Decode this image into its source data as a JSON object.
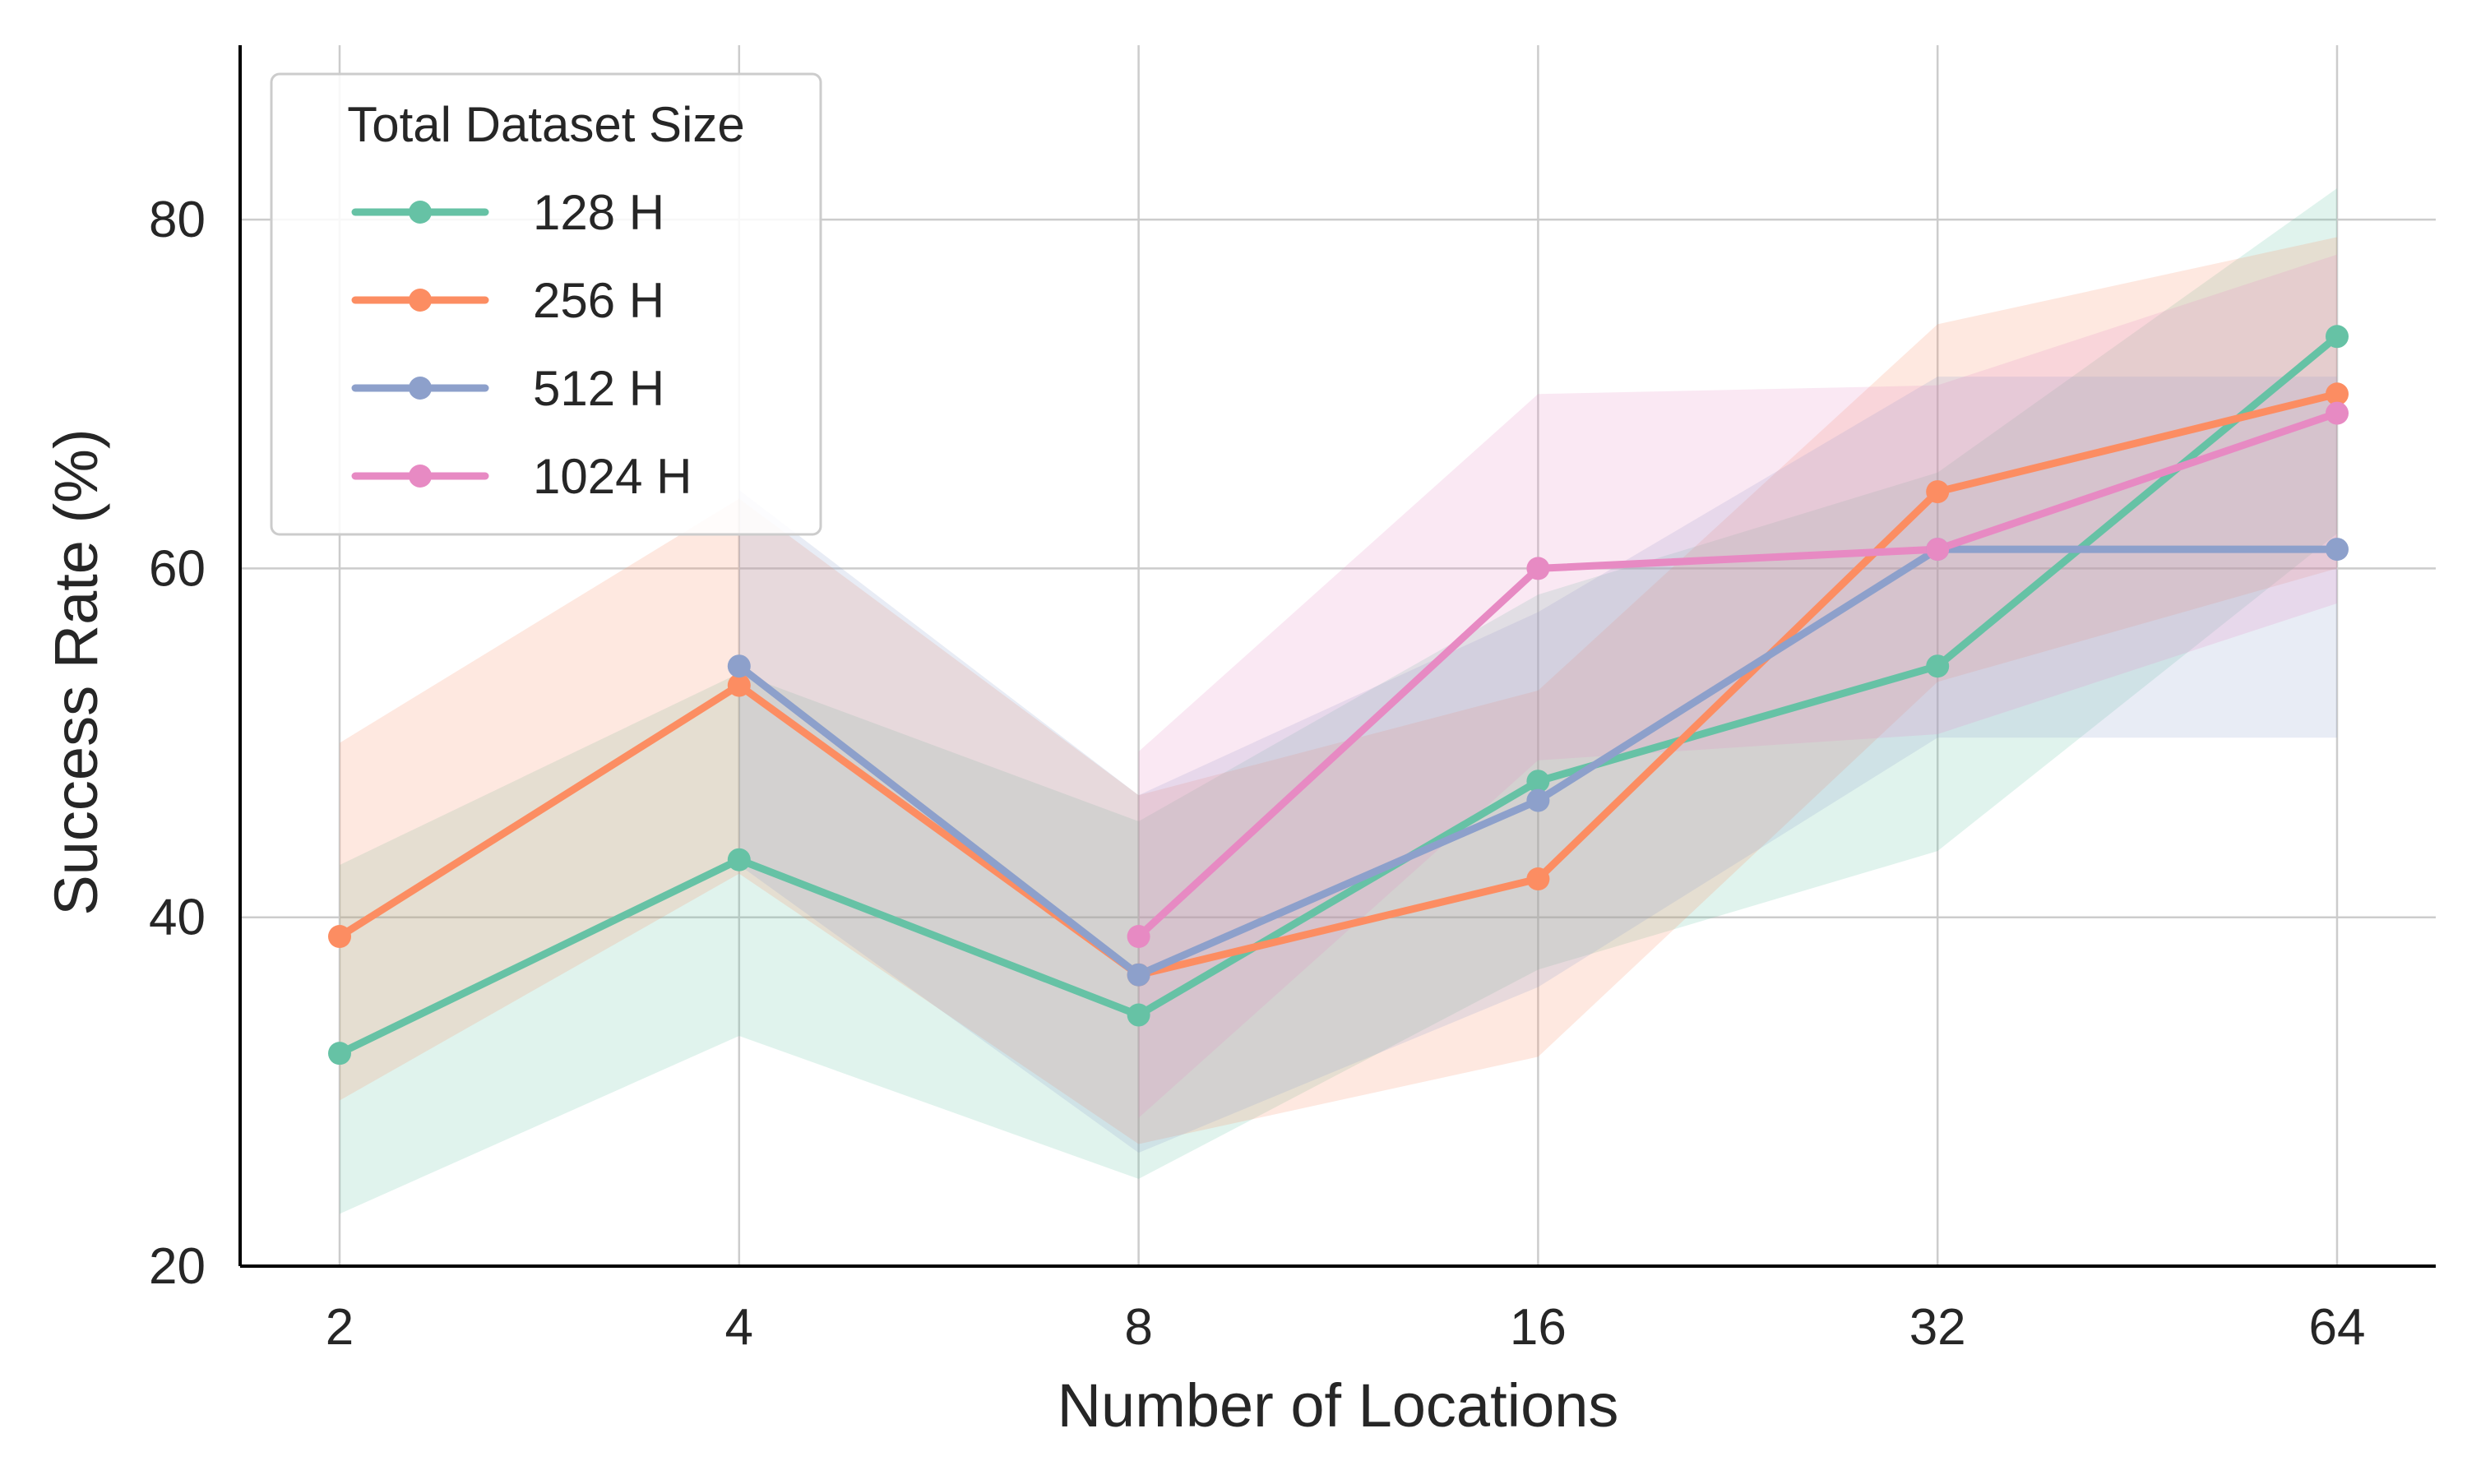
{
  "chart_data": {
    "type": "line",
    "title": "",
    "xlabel": "Number of Locations",
    "ylabel": "Success Rate (%)",
    "categories": [
      "2",
      "4",
      "8",
      "16",
      "32",
      "64"
    ],
    "ylim": [
      20,
      90
    ],
    "yticks": [
      20,
      40,
      60,
      80
    ],
    "grid": true,
    "legend": {
      "title": "Total Dataset Size",
      "placement": "top-left"
    },
    "series": [
      {
        "name": "128 H",
        "color": "#66c2a5",
        "values": [
          32.2,
          43.3,
          34.4,
          47.8,
          54.4,
          73.3
        ],
        "lower": [
          23.0,
          33.2,
          25.0,
          37.0,
          43.8,
          62.0
        ],
        "upper": [
          43.0,
          54.0,
          45.5,
          58.5,
          65.5,
          81.8
        ]
      },
      {
        "name": "256 H",
        "color": "#fc8d62",
        "values": [
          38.9,
          53.3,
          36.7,
          42.2,
          64.4,
          70.0
        ],
        "lower": [
          29.5,
          42.5,
          27.0,
          32.0,
          53.5,
          60.0
        ],
        "upper": [
          50.0,
          64.0,
          47.0,
          53.0,
          74.0,
          79.0
        ]
      },
      {
        "name": "512 H",
        "color": "#8da0cb",
        "values": [
          null,
          54.4,
          36.7,
          46.7,
          61.1,
          61.1
        ],
        "lower": [
          null,
          43.0,
          26.5,
          36.0,
          50.3,
          50.3
        ],
        "upper": [
          null,
          64.5,
          47.0,
          57.5,
          71.0,
          71.0
        ]
      },
      {
        "name": "1024 H",
        "color": "#e78ac3",
        "values": [
          null,
          null,
          38.9,
          60.0,
          61.1,
          68.9
        ],
        "lower": [
          null,
          null,
          28.5,
          49.0,
          50.5,
          58.0
        ],
        "upper": [
          null,
          null,
          49.5,
          70.0,
          70.5,
          78.0
        ]
      }
    ]
  }
}
